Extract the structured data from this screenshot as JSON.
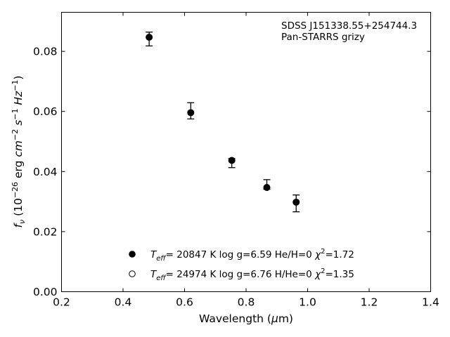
{
  "chart_data": {
    "type": "scatter",
    "title": "",
    "annotation_lines": [
      "SDSS J151338.55+254744.3",
      "Pan-STARRS grizy"
    ],
    "xlabel": {
      "prefix": "Wavelength (",
      "greek": "μ",
      "suffix": "m)"
    },
    "ylabel": {
      "f": "f",
      "sub": "ν",
      "open": " (10",
      "exp1": "−26",
      "mid": " erg ",
      "cm": "cm",
      "exp2": "−2",
      "s": " s",
      "exp3": "−1",
      "hz": " Hz",
      "exp4": "−1",
      "close": ")"
    },
    "xlim": [
      0.2,
      1.4
    ],
    "ylim": [
      0.0,
      0.093
    ],
    "xticks": [
      0.2,
      0.4,
      0.6,
      0.8,
      1.0,
      1.2,
      1.4
    ],
    "xtick_labels": [
      "0.2",
      "0.4",
      "0.6",
      "0.8",
      "1.0",
      "1.2",
      "1.4"
    ],
    "yticks": [
      0.0,
      0.02,
      0.04,
      0.06,
      0.08
    ],
    "ytick_labels": [
      "0.00",
      "0.02",
      "0.04",
      "0.06",
      "0.08"
    ],
    "grid": false,
    "legend_position": "bottom-center",
    "observed": {
      "x": [
        0.4849,
        0.6201,
        0.7535,
        0.8674,
        0.9628
      ],
      "y": [
        0.0841,
        0.0602,
        0.0428,
        0.0357,
        0.0294
      ],
      "yerr": [
        0.0023,
        0.0027,
        0.0015,
        0.0016,
        0.0028
      ]
    },
    "series": [
      {
        "marker": "filled-circle",
        "legend_parts": [
          "T",
          "eff",
          "= 20847 K  log g=6.59  He/H=0  ",
          "χ",
          "2",
          "=1.72"
        ],
        "x": [
          0.4849,
          0.6201,
          0.7535,
          0.8674,
          0.9628
        ],
        "y": [
          0.0847,
          0.0596,
          0.0437,
          0.0347,
          0.0298
        ]
      },
      {
        "marker": "open-circle",
        "legend_parts": [
          "T",
          "eff",
          "= 24974 K  log g=6.76  H/He=0  ",
          "χ",
          "2",
          "=1.35"
        ],
        "x": [],
        "y": []
      }
    ],
    "colors": {
      "marker": "#000000",
      "axes": "#000000",
      "background": "#ffffff"
    }
  }
}
